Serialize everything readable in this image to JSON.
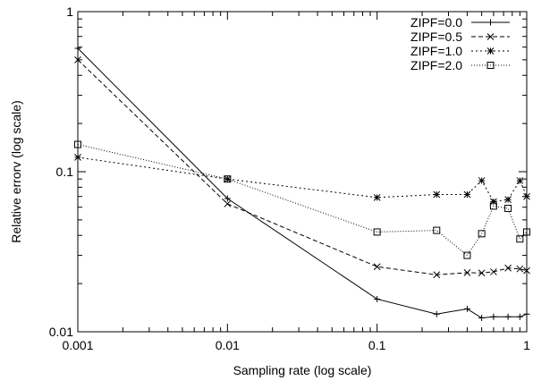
{
  "chart_data": {
    "type": "line",
    "title": "",
    "xlabel": "Sampling rate (log scale)",
    "ylabel": "Relative errorv (log scale)",
    "x_scale": "log",
    "y_scale": "log",
    "xlim": [
      0.001,
      1
    ],
    "ylim": [
      0.01,
      1
    ],
    "x_ticks": [
      {
        "value": 0.001,
        "label": "0.001"
      },
      {
        "value": 0.01,
        "label": "0.01"
      },
      {
        "value": 0.1,
        "label": "0.1"
      },
      {
        "value": 1,
        "label": "1"
      }
    ],
    "y_ticks": [
      {
        "value": 0.01,
        "label": "0.01"
      },
      {
        "value": 0.1,
        "label": "0.1"
      },
      {
        "value": 1,
        "label": "1"
      }
    ],
    "grid": false,
    "legend_position": "top-right",
    "series": [
      {
        "name": "ZIPF=0.0",
        "marker": "plus",
        "dash": "solid",
        "x": [
          0.001,
          0.01,
          0.1,
          0.25,
          0.4,
          0.5,
          0.6,
          0.75,
          0.9,
          1.0
        ],
        "y": [
          0.59,
          0.068,
          0.016,
          0.0129,
          0.0139,
          0.0122,
          0.0124,
          0.0124,
          0.0124,
          0.0129
        ]
      },
      {
        "name": "ZIPF=0.5",
        "marker": "cross",
        "dash": "dashed",
        "x": [
          0.001,
          0.01,
          0.1,
          0.25,
          0.4,
          0.5,
          0.6,
          0.75,
          0.9,
          1.0
        ],
        "y": [
          0.5,
          0.063,
          0.0255,
          0.0227,
          0.0234,
          0.0233,
          0.0237,
          0.025,
          0.0247,
          0.0241
        ]
      },
      {
        "name": "ZIPF=1.0",
        "marker": "star",
        "dash": "dotted",
        "x": [
          0.001,
          0.01,
          0.1,
          0.25,
          0.4,
          0.5,
          0.6,
          0.75,
          0.9,
          1.0
        ],
        "y": [
          0.123,
          0.09,
          0.069,
          0.072,
          0.072,
          0.088,
          0.065,
          0.067,
          0.088,
          0.07
        ]
      },
      {
        "name": "ZIPF=2.0",
        "marker": "square",
        "dash": "fine-dotted",
        "x": [
          0.001,
          0.01,
          0.1,
          0.25,
          0.4,
          0.5,
          0.6,
          0.75,
          0.9,
          1.0
        ],
        "y": [
          0.148,
          0.09,
          0.042,
          0.043,
          0.03,
          0.041,
          0.061,
          0.059,
          0.038,
          0.042
        ]
      }
    ]
  }
}
